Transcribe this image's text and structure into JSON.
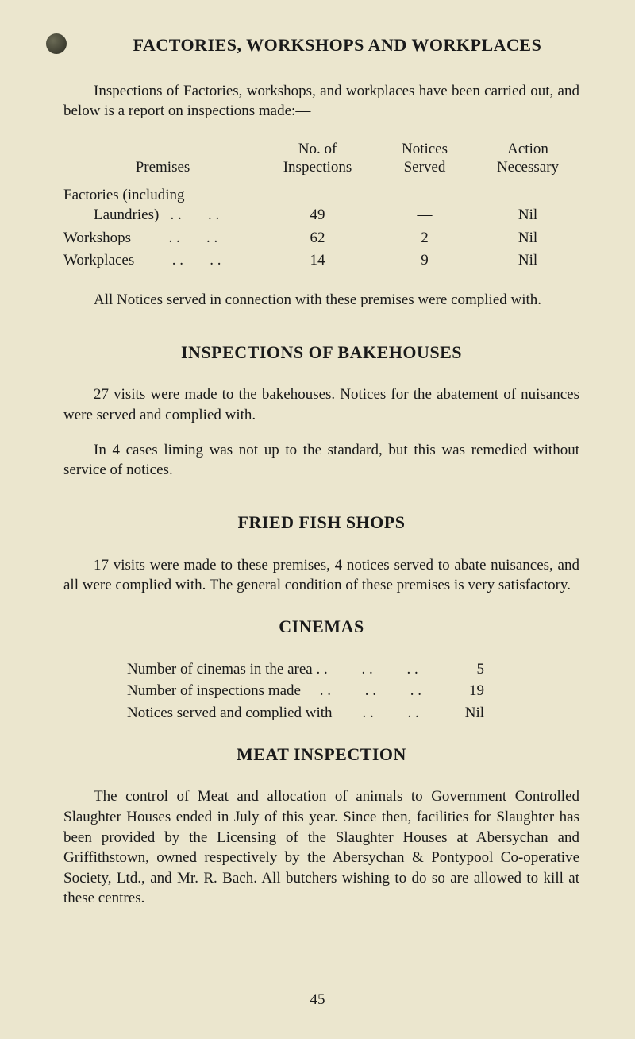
{
  "bullet": {
    "name": "section-bullet"
  },
  "heading1": "FACTORIES, WORKSHOPS AND WORKPLACES",
  "intro1": "Inspections of Factories, workshops, and workplaces have been carried out, and below is a report on inspections made:—",
  "table1": {
    "headers": {
      "premises": "Premises",
      "inspections_line1": "No. of",
      "inspections_line2": "Inspections",
      "notices_line1": "Notices",
      "notices_line2": "Served",
      "action_line1": "Action",
      "action_line2": "Necessary"
    },
    "rows": [
      {
        "premises_line1": "Factories (including",
        "premises_line2": "Laundries)   . .       . .",
        "inspections": "49",
        "notices": "—",
        "action": "Nil"
      },
      {
        "premises_line1": "",
        "premises_line2": "Workshops          . .       . .",
        "inspections": "62",
        "notices": "2",
        "action": "Nil"
      },
      {
        "premises_line1": "",
        "premises_line2": "Workplaces          . .       . .",
        "inspections": "14",
        "notices": "9",
        "action": "Nil"
      }
    ]
  },
  "para_notices": "All Notices served in connection with these premises were complied with.",
  "heading2": "INSPECTIONS OF BAKEHOUSES",
  "para_bake1": "27 visits were made to the bakehouses.  Notices for the abate­ment of nuisances were served and complied with.",
  "para_bake2": "In 4 cases liming was not up to the standard, but this was remedied without service of notices.",
  "heading3": "FRIED FISH SHOPS",
  "para_fish": "17 visits were made to these premises, 4 notices served to abate nuisances, and all were complied with.  The general condition of these premises is very satisfactory.",
  "heading4": "CINEMAS",
  "cinemas": {
    "rows": [
      {
        "label": "Number of cinemas in the area . .         . .         . .",
        "value": "5"
      },
      {
        "label": "Number of inspections made     . .         . .         . .",
        "value": "19"
      },
      {
        "label": "Notices served and complied with        . .         . .",
        "value": "Nil"
      }
    ]
  },
  "heading5": "MEAT INSPECTION",
  "para_meat": "The control of Meat and allocation of animals to Government Controlled Slaughter Houses ended in July of this year.  Since then, facilities for Slaughter has been provided by the Licensing of the Slaughter Houses at Abersychan and Griffithstown, owned respectively by the Abersychan & Pontypool Co-operative Society, Ltd., and Mr. R. Bach.  All butchers wishing to do so are allowed to kill at these centres.",
  "page_number": "45"
}
